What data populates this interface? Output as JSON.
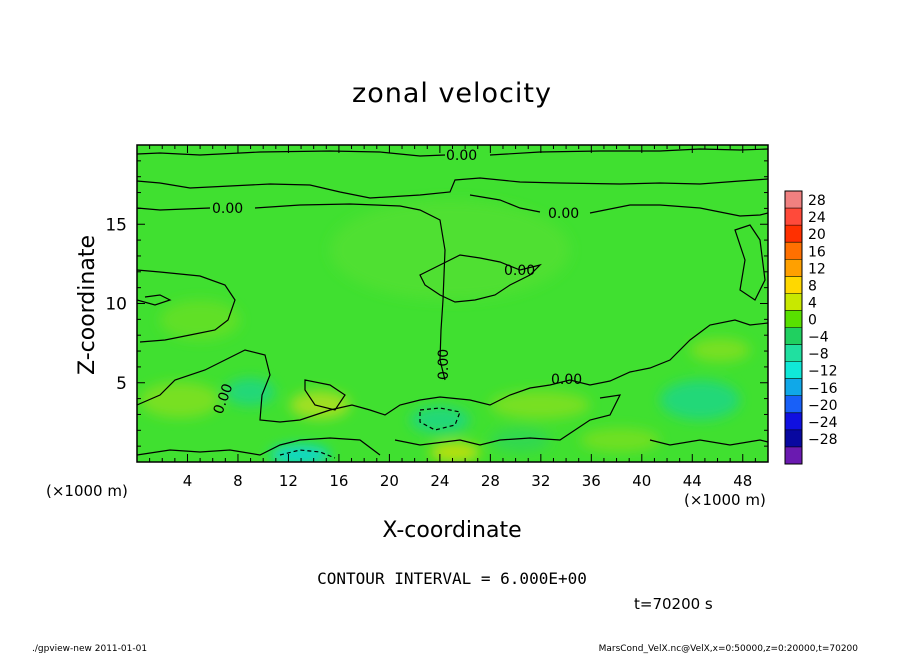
{
  "chart_data": {
    "type": "heatmap",
    "title": "zonal velocity",
    "xlabel": "X-coordinate",
    "ylabel": "Z-coordinate",
    "x_unit_label": "(×1000 m)",
    "y_unit_label": "(×1000 m)",
    "xlim": [
      0,
      50
    ],
    "ylim": [
      0,
      20
    ],
    "x_ticks": [
      4,
      8,
      12,
      16,
      20,
      24,
      28,
      32,
      36,
      40,
      44,
      48
    ],
    "y_ticks": [
      5,
      10,
      15
    ],
    "colorbar": {
      "levels": [
        28,
        24,
        20,
        16,
        12,
        8,
        4,
        0,
        -4,
        -8,
        -12,
        -16,
        -20,
        -24,
        -28
      ],
      "level_labels": [
        "28",
        "24",
        "20",
        "16",
        "12",
        "8",
        "4",
        "0",
        "−4",
        "−8",
        "−12",
        "−16",
        "−20",
        "−24",
        "−28"
      ],
      "colors_top_to_bottom": [
        "#f08080",
        "#ff4a3a",
        "#ff3000",
        "#ff7000",
        "#ffa000",
        "#ffd800",
        "#c8e800",
        "#58e000",
        "#20d060",
        "#20e0a0",
        "#10e8d8",
        "#10a8e8",
        "#1860f8",
        "#1010e0",
        "#0808a0",
        "#6a1ab0"
      ]
    },
    "contour_interval_text": "CONTOUR INTERVAL = 6.000E+00",
    "contour_labels": [
      "0.00",
      "0.00",
      "0.00",
      "0.00",
      "0.00",
      "0.00",
      "0.00"
    ],
    "background_color": "#40e030"
  },
  "time_label": "t=70200 s",
  "footer_left": "./gpview-new  2011-01-01",
  "footer_right": "MarsCond_VelX.nc@VelX,x=0:50000,z=0:20000,t=70200"
}
